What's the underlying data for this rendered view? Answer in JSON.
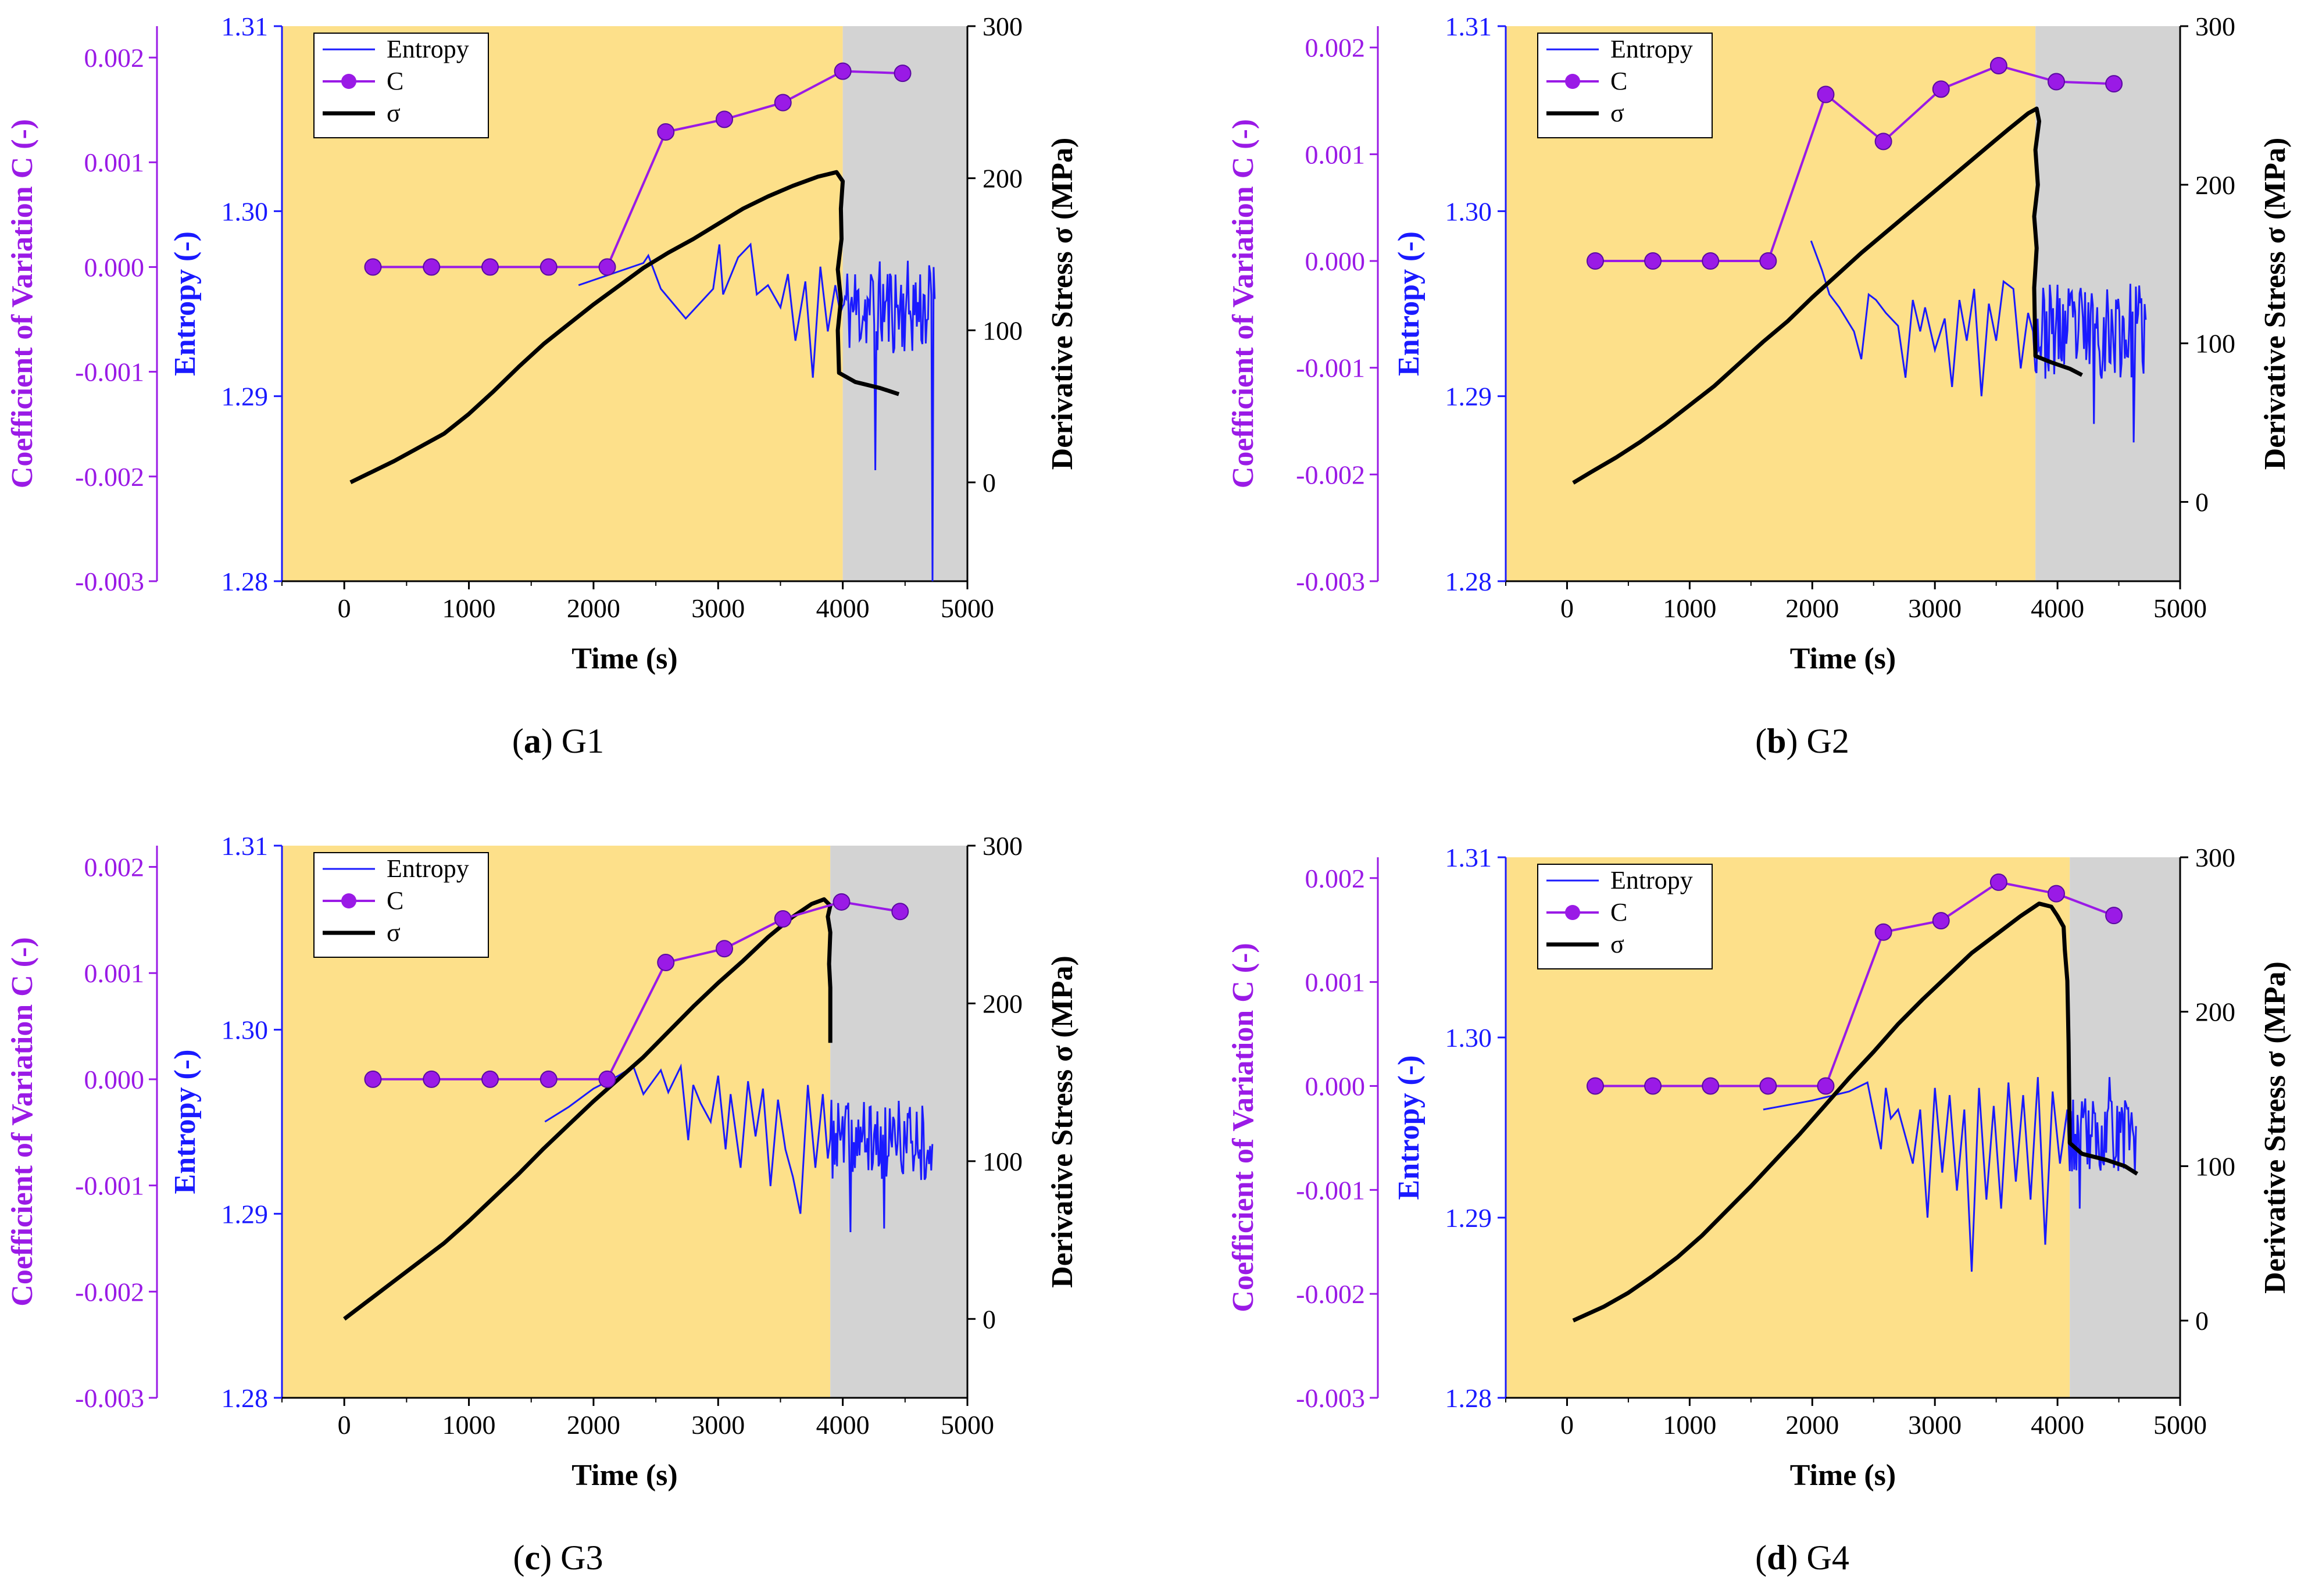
{
  "colors": {
    "entropy": "#1a1aff",
    "c": "#9a1ae6",
    "sigma": "#000000",
    "pre_region": "#fde08a",
    "post_region": "#d3d3d3"
  },
  "chart_data": [
    {
      "type": "line",
      "caption": {
        "letter": "(a)",
        "label": "G1"
      },
      "xlabel": "Time (s)",
      "ylabel_entropy": "Entropy (-)",
      "ylabel_c": "Coefficient of Variation C (-)",
      "ylabel_sigma": "Derivative Stress σ (MPa)",
      "xlim": [
        -500,
        5000
      ],
      "x_ticks": [
        "0",
        "1000",
        "2000",
        "3000",
        "4000",
        "5000"
      ],
      "entropy_lim": [
        1.28,
        1.31
      ],
      "entropy_ticks": [
        "1.28",
        "1.29",
        "1.30",
        "1.31"
      ],
      "c_lim": [
        -0.003,
        0.0023
      ],
      "c_ticks": [
        "-0.003",
        "-0.002",
        "-0.001",
        "0.000",
        "0.001",
        "0.002"
      ],
      "sigma_lim": [
        -65,
        300
      ],
      "sigma_ticks": [
        "0",
        "100",
        "200",
        "300"
      ],
      "split_time": 4000,
      "legend": [
        "Entropy",
        "C",
        "σ"
      ],
      "c_series": {
        "x": [
          230,
          700,
          1170,
          1640,
          2110,
          2580,
          3050,
          3520,
          4000,
          4480
        ],
        "y": [
          0.0,
          0.0,
          0.0,
          0.0,
          0.0,
          0.00129,
          0.00141,
          0.00157,
          0.00187,
          0.00185
        ]
      },
      "sigma_series": {
        "x": [
          50,
          200,
          400,
          600,
          800,
          1000,
          1200,
          1400,
          1600,
          1800,
          2000,
          2200,
          2400,
          2600,
          2800,
          3000,
          3200,
          3400,
          3600,
          3800,
          3950,
          4000,
          3985,
          3990,
          3960,
          3985,
          3960,
          3970,
          4100,
          4300,
          4450
        ],
        "y": [
          0,
          6,
          14,
          23,
          32,
          45,
          60,
          76,
          91,
          104,
          117,
          129,
          141,
          151,
          160,
          170,
          180,
          188,
          195,
          201,
          204,
          198,
          180,
          160,
          140,
          120,
          100,
          72,
          66,
          62,
          58
        ]
      },
      "entropy_series": {
        "x": [
          1880,
          2400,
          2440,
          2540,
          2740,
          2960,
          3010,
          3040,
          3160,
          3260,
          3310,
          3400,
          3500,
          3560,
          3620,
          3700,
          3760,
          3820,
          3880,
          3940,
          3980
        ],
        "y": [
          1.296,
          1.2972,
          1.2976,
          1.2958,
          1.2942,
          1.2958,
          1.2982,
          1.2955,
          1.2975,
          1.2982,
          1.2955,
          1.296,
          1.2948,
          1.2966,
          1.293,
          1.2962,
          1.291,
          1.297,
          1.2935,
          1.296,
          1.2945
        ]
      },
      "entropy_noise": {
        "seed": 11,
        "t0": 4000,
        "t1": 4740,
        "base": 1.2948,
        "amp": 0.0026,
        "spikes": [
          [
            4260,
            1.286
          ],
          [
            4720,
            1.28
          ]
        ]
      }
    },
    {
      "type": "line",
      "caption": {
        "letter": "(b)",
        "label": "G2"
      },
      "xlabel": "Time (s)",
      "ylabel_entropy": "Entropy (-)",
      "ylabel_c": "Coefficient of Variation C (-)",
      "ylabel_sigma": "Derivative Stress σ (MPa)",
      "xlim": [
        -500,
        5000
      ],
      "x_ticks": [
        "0",
        "1000",
        "2000",
        "3000",
        "4000",
        "5000"
      ],
      "entropy_lim": [
        1.28,
        1.31
      ],
      "entropy_ticks": [
        "1.28",
        "1.29",
        "1.30",
        "1.31"
      ],
      "c_lim": [
        -0.003,
        0.0022
      ],
      "c_ticks": [
        "-0.003",
        "-0.002",
        "-0.001",
        "0.000",
        "0.001",
        "0.002"
      ],
      "sigma_lim": [
        -50,
        300
      ],
      "sigma_ticks": [
        "0",
        "100",
        "200",
        "300"
      ],
      "split_time": 3820,
      "legend": [
        "Entropy",
        "C",
        "σ"
      ],
      "c_series": {
        "x": [
          230,
          700,
          1170,
          1640,
          2110,
          2580,
          3050,
          3520,
          3990,
          4460
        ],
        "y": [
          0.0,
          0.0,
          0.0,
          0.0,
          0.00156,
          0.00112,
          0.00161,
          0.00183,
          0.00168,
          0.00166
        ]
      },
      "sigma_series": {
        "x": [
          50,
          200,
          400,
          600,
          800,
          1000,
          1200,
          1400,
          1600,
          1800,
          2000,
          2200,
          2400,
          2600,
          2800,
          3000,
          3200,
          3400,
          3600,
          3760,
          3830,
          3850,
          3820,
          3840,
          3810,
          3830,
          3810,
          3820,
          3950,
          4100,
          4200
        ],
        "y": [
          12,
          19,
          28,
          38,
          49,
          61,
          73,
          87,
          101,
          114,
          129,
          143,
          157,
          170,
          183,
          196,
          209,
          222,
          235,
          245,
          248,
          240,
          222,
          200,
          180,
          160,
          135,
          92,
          88,
          84,
          80
        ]
      },
      "entropy_series": {
        "x": [
          1990,
          2080,
          2140,
          2220,
          2340,
          2400,
          2460,
          2520,
          2600,
          2700,
          2760,
          2820,
          2880,
          2920,
          3000,
          3080,
          3140,
          3200,
          3260,
          3320,
          3380,
          3440,
          3500,
          3560,
          3640,
          3700,
          3760,
          3800
        ],
        "y": [
          1.2984,
          1.2968,
          1.2955,
          1.2948,
          1.2935,
          1.292,
          1.2955,
          1.2952,
          1.2945,
          1.2938,
          1.291,
          1.2952,
          1.2935,
          1.2948,
          1.2925,
          1.2942,
          1.2905,
          1.2952,
          1.293,
          1.2958,
          1.29,
          1.295,
          1.293,
          1.2962,
          1.2958,
          1.2915,
          1.2945,
          1.2935
        ]
      },
      "entropy_noise": {
        "seed": 23,
        "t0": 3820,
        "t1": 4720,
        "base": 1.2935,
        "amp": 0.0026,
        "spikes": [
          [
            4300,
            1.2885
          ],
          [
            4620,
            1.2875
          ]
        ]
      }
    },
    {
      "type": "line",
      "caption": {
        "letter": "(c)",
        "label": "G3"
      },
      "xlabel": "Time (s)",
      "ylabel_entropy": "Entropy (-)",
      "ylabel_c": "Coefficient of Variation C (-)",
      "ylabel_sigma": "Derivative Stress σ (MPa)",
      "xlim": [
        -500,
        5000
      ],
      "x_ticks": [
        "0",
        "1000",
        "2000",
        "3000",
        "4000",
        "5000"
      ],
      "entropy_lim": [
        1.28,
        1.31
      ],
      "entropy_ticks": [
        "1.28",
        "1.29",
        "1.30",
        "1.31"
      ],
      "c_lim": [
        -0.003,
        0.0022
      ],
      "c_ticks": [
        "-0.003",
        "-0.002",
        "-0.001",
        "0.000",
        "0.001",
        "0.002"
      ],
      "sigma_lim": [
        -50,
        300
      ],
      "sigma_ticks": [
        "0",
        "100",
        "200",
        "300"
      ],
      "split_time": 3900,
      "legend": [
        "Entropy",
        "C",
        "σ"
      ],
      "c_series": {
        "x": [
          230,
          700,
          1170,
          1640,
          2110,
          2580,
          3050,
          3520,
          3990,
          4460
        ],
        "y": [
          0.0,
          0.0,
          0.0,
          0.0,
          0.0,
          0.0011,
          0.00123,
          0.00151,
          0.00167,
          0.00158
        ]
      },
      "sigma_series": {
        "x": [
          0,
          200,
          400,
          600,
          800,
          1000,
          1200,
          1400,
          1600,
          1800,
          2000,
          2200,
          2400,
          2600,
          2800,
          3000,
          3200,
          3400,
          3600,
          3750,
          3850,
          3900,
          3880,
          3900,
          3890,
          3900,
          3900
        ],
        "y": [
          0,
          12,
          24,
          36,
          48,
          62,
          77,
          92,
          108,
          123,
          138,
          152,
          166,
          182,
          198,
          213,
          227,
          242,
          255,
          263,
          266,
          262,
          255,
          245,
          225,
          210,
          175
        ]
      },
      "entropy_series": {
        "x": [
          1610,
          1800,
          2000,
          2200,
          2320,
          2400,
          2540,
          2600,
          2700,
          2760,
          2800,
          2860,
          2940,
          3000,
          3060,
          3100,
          3180,
          3240,
          3300,
          3360,
          3420,
          3480,
          3540,
          3600,
          3660,
          3720,
          3780,
          3840,
          3880
        ],
        "y": [
          1.295,
          1.2958,
          1.2968,
          1.2975,
          1.298,
          1.2965,
          1.2978,
          1.2966,
          1.298,
          1.294,
          1.297,
          1.296,
          1.295,
          1.2975,
          1.2935,
          1.2965,
          1.2925,
          1.2972,
          1.2942,
          1.2968,
          1.2915,
          1.2962,
          1.2935,
          1.292,
          1.29,
          1.297,
          1.2925,
          1.2965,
          1.293
        ]
      },
      "entropy_noise": {
        "seed": 37,
        "t0": 3900,
        "t1": 4720,
        "base": 1.294,
        "amp": 0.0022,
        "spikes": [
          [
            4060,
            1.289
          ],
          [
            4330,
            1.2892
          ]
        ]
      }
    },
    {
      "type": "line",
      "caption": {
        "letter": "(d)",
        "label": "G4"
      },
      "xlabel": "Time (s)",
      "ylabel_entropy": "Entropy (-)",
      "ylabel_c": "Coefficient of Variation C (-)",
      "ylabel_sigma": "Derivative Stress σ (MPa)",
      "xlim": [
        -500,
        5000
      ],
      "x_ticks": [
        "0",
        "1000",
        "2000",
        "3000",
        "4000",
        "5000"
      ],
      "entropy_lim": [
        1.28,
        1.31
      ],
      "entropy_ticks": [
        "1.28",
        "1.29",
        "1.30",
        "1.31"
      ],
      "c_lim": [
        -0.003,
        0.0022
      ],
      "c_ticks": [
        "-0.003",
        "-0.002",
        "-0.001",
        "0.000",
        "0.001",
        "0.002"
      ],
      "sigma_lim": [
        -50,
        300
      ],
      "sigma_ticks": [
        "0",
        "100",
        "200",
        "300"
      ],
      "split_time": 4100,
      "legend": [
        "Entropy",
        "C",
        "σ"
      ],
      "c_series": {
        "x": [
          230,
          700,
          1170,
          1640,
          2110,
          2580,
          3050,
          3520,
          3990,
          4460
        ],
        "y": [
          0.0,
          0.0,
          0.0,
          0.0,
          0.0,
          0.00148,
          0.00159,
          0.00196,
          0.00185,
          0.00164
        ]
      },
      "sigma_series": {
        "x": [
          50,
          300,
          500,
          700,
          900,
          1100,
          1300,
          1500,
          1700,
          1900,
          2100,
          2300,
          2500,
          2700,
          2900,
          3100,
          3300,
          3500,
          3700,
          3850,
          3950,
          4000,
          4050,
          4060,
          4080,
          4090,
          4100,
          4200,
          4400,
          4550,
          4650
        ],
        "y": [
          0,
          9,
          18,
          29,
          41,
          55,
          71,
          87,
          104,
          121,
          139,
          157,
          174,
          192,
          208,
          223,
          238,
          250,
          262,
          270,
          268,
          262,
          255,
          240,
          220,
          180,
          115,
          108,
          104,
          100,
          95
        ]
      },
      "entropy_series": {
        "x": [
          1600,
          2000,
          2300,
          2450,
          2560,
          2600,
          2640,
          2700,
          2760,
          2820,
          2880,
          2940,
          3000,
          3060,
          3120,
          3180,
          3240,
          3300,
          3360,
          3420,
          3480,
          3540,
          3600,
          3660,
          3720,
          3780,
          3840,
          3900,
          3960,
          4020,
          4080
        ],
        "y": [
          1.296,
          1.2965,
          1.297,
          1.2975,
          1.2938,
          1.2972,
          1.2955,
          1.296,
          1.2945,
          1.293,
          1.296,
          1.29,
          1.2972,
          1.2925,
          1.2968,
          1.2915,
          1.296,
          1.287,
          1.2972,
          1.291,
          1.2962,
          1.2905,
          1.2975,
          1.292,
          1.2968,
          1.291,
          1.2978,
          1.2885,
          1.297,
          1.293,
          1.296
        ]
      },
      "entropy_noise": {
        "seed": 53,
        "t0": 4100,
        "t1": 4640,
        "base": 1.2945,
        "amp": 0.0022,
        "spikes": [
          [
            4180,
            1.2905
          ],
          [
            4420,
            1.2978
          ]
        ]
      }
    }
  ]
}
